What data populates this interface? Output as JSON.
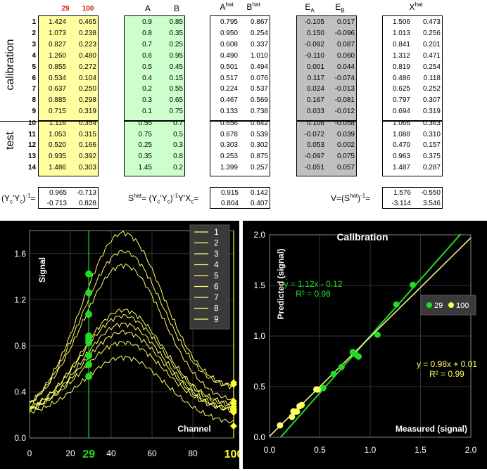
{
  "labels": {
    "calibration": "calibration",
    "test": "test"
  },
  "headers": {
    "y29": "29",
    "y100": "100",
    "a": "A",
    "b": "B",
    "ahat": "A",
    "bhat": "B",
    "hat": "hat",
    "ea": "E",
    "ea_sub": "A",
    "eb": "E",
    "eb_sub": "B",
    "xhat": "X"
  },
  "rows": [
    {
      "i": "1",
      "y29": "1.424",
      "y100": "0.465",
      "a": "0.9",
      "b": "0.85",
      "ah": "0.795",
      "bh": "0.867",
      "ea": "-0.105",
      "eb": "0.017",
      "x1": "1.506",
      "x2": "0.473"
    },
    {
      "i": "2",
      "y29": "1.073",
      "y100": "0.238",
      "a": "0.8",
      "b": "0.35",
      "ah": "0.950",
      "bh": "0.254",
      "ea": "0.150",
      "eb": "-0.096",
      "x1": "1.013",
      "x2": "0.256"
    },
    {
      "i": "3",
      "y29": "0.827",
      "y100": "0.223",
      "a": "0.7",
      "b": "0.25",
      "ah": "0.608",
      "bh": "0.337",
      "ea": "-0.092",
      "eb": "0.087",
      "x1": "0.841",
      "x2": "0.201"
    },
    {
      "i": "4",
      "y29": "1.260",
      "y100": "0.480",
      "a": "0.6",
      "b": "0.95",
      "ah": "0.490",
      "bh": "1.010",
      "ea": "-0.110",
      "eb": "0.060",
      "x1": "1.312",
      "x2": "0.471"
    },
    {
      "i": "5",
      "y29": "0.855",
      "y100": "0.272",
      "a": "0.5",
      "b": "0.45",
      "ah": "0.501",
      "bh": "0.494",
      "ea": "0.001",
      "eb": "0.044",
      "x1": "0.819",
      "x2": "0.254"
    },
    {
      "i": "6",
      "y29": "0.534",
      "y100": "0.104",
      "a": "0.4",
      "b": "0.15",
      "ah": "0.517",
      "bh": "0.076",
      "ea": "0.117",
      "eb": "-0.074",
      "x1": "0.486",
      "x2": "0.118"
    },
    {
      "i": "7",
      "y29": "0.637",
      "y100": "0.250",
      "a": "0.2",
      "b": "0.55",
      "ah": "0.224",
      "bh": "0.537",
      "ea": "0.024",
      "eb": "-0.013",
      "x1": "0.625",
      "x2": "0.252"
    },
    {
      "i": "8",
      "y29": "0.885",
      "y100": "0.298",
      "a": "0.3",
      "b": "0.65",
      "ah": "0.467",
      "bh": "0.569",
      "ea": "0.167",
      "eb": "-0.081",
      "x1": "0.797",
      "x2": "0.307"
    },
    {
      "i": "9",
      "y29": "0.715",
      "y100": "0.319",
      "a": "0.1",
      "b": "0.75",
      "ah": "0.133",
      "bh": "0.738",
      "ea": "0.033",
      "eb": "-0.012",
      "x1": "0.694",
      "x2": "0.319"
    },
    {
      "i": "10",
      "y29": "1.116",
      "y100": "0.354",
      "a": "0.55",
      "b": "0.7",
      "ah": "0.656",
      "bh": "0.642",
      "ea": "0.106",
      "eb": "-0.058",
      "x1": "1.066",
      "x2": "0.363"
    },
    {
      "i": "11",
      "y29": "1.053",
      "y100": "0.315",
      "a": "0.75",
      "b": "0.5",
      "ah": "0.678",
      "bh": "0.539",
      "ea": "-0.072",
      "eb": "0.039",
      "x1": "1.088",
      "x2": "0.310"
    },
    {
      "i": "12",
      "y29": "0.520",
      "y100": "0.166",
      "a": "0.25",
      "b": "0.3",
      "ah": "0.303",
      "bh": "0.302",
      "ea": "0.053",
      "eb": "0.002",
      "x1": "0.470",
      "x2": "0.157"
    },
    {
      "i": "13",
      "y29": "0.935",
      "y100": "0.392",
      "a": "0.35",
      "b": "0.8",
      "ah": "0.253",
      "bh": "0.875",
      "ea": "-0.097",
      "eb": "0.075",
      "x1": "0.963",
      "x2": "0.375"
    },
    {
      "i": "14",
      "y29": "1.486",
      "y100": "0.303",
      "a": "1.45",
      "b": "0.2",
      "ah": "1.399",
      "bh": "0.257",
      "ea": "-0.051",
      "eb": "0.057",
      "x1": "1.487",
      "x2": "0.287"
    }
  ],
  "matrices": {
    "ycinv_label": "(Y",
    "ycinv": [
      [
        "0.965",
        "-0.713"
      ],
      [
        "-0.713",
        "0.828"
      ]
    ],
    "shat": [
      [
        "0.915",
        "0.142"
      ],
      [
        "0.804",
        "0.407"
      ]
    ],
    "v": [
      [
        "1.576",
        "-0.550"
      ],
      [
        "-3.114",
        "3.546"
      ]
    ]
  },
  "formulas": {
    "ycinv": "(YcᵀYc)⁻¹=",
    "shat": "Shat= (YcᵀYc)⁻¹YᵀXc=",
    "v": "V=(Shat)⁻¹="
  },
  "chart_data": [
    {
      "type": "line",
      "title": "",
      "xlabel": "Channel",
      "ylabel": "Signal",
      "xlim": [
        0,
        100
      ],
      "ylim": [
        0,
        1.8
      ],
      "x_ticks": [
        "0",
        "20",
        "29",
        "40",
        "60",
        "80",
        "100"
      ],
      "y_ticks": [
        "0.0",
        "0.4",
        "0.8",
        "1.2",
        "1.6"
      ],
      "markers": {
        "x29": "29",
        "x100": "100"
      },
      "legend": [
        "1",
        "2",
        "3",
        "4",
        "5",
        "6",
        "7",
        "8",
        "9"
      ],
      "legend_position": "top-right",
      "series_peaks": [
        1.78,
        1.62,
        1.5,
        1.11,
        1.06,
        0.99,
        0.92,
        0.83,
        0.7
      ],
      "values_at_29": [
        1.424,
        1.26,
        1.073,
        0.885,
        0.855,
        0.827,
        0.715,
        0.637,
        0.534
      ],
      "values_at_100": [
        0.48,
        0.465,
        0.319,
        0.298,
        0.272,
        0.25,
        0.238,
        0.223,
        0.104
      ]
    },
    {
      "type": "scatter",
      "title": "Calibration",
      "xlabel": "Measured (signal)",
      "ylabel": "Predicted (signal)",
      "xlim": [
        0,
        2.0
      ],
      "ylim": [
        0,
        2.0
      ],
      "x_ticks": [
        "0.0",
        "0.5",
        "1.0",
        "1.5",
        "2.0"
      ],
      "y_ticks": [
        "0.0",
        "0.5",
        "1.0",
        "1.5",
        "2.0"
      ],
      "series": [
        {
          "name": "29",
          "color": "#22dd22",
          "x": [
            1.424,
            1.26,
            1.073,
            0.885,
            0.855,
            0.827,
            0.715,
            0.637,
            0.534
          ],
          "y": [
            1.506,
            1.312,
            1.013,
            0.797,
            0.819,
            0.841,
            0.694,
            0.625,
            0.486
          ],
          "fit": "y = 1.12x - 0.12",
          "r2": "R² = 0.98"
        },
        {
          "name": "100",
          "color": "#ffff66",
          "x": [
            0.48,
            0.465,
            0.319,
            0.298,
            0.272,
            0.25,
            0.238,
            0.223,
            0.104
          ],
          "y": [
            0.471,
            0.473,
            0.319,
            0.307,
            0.254,
            0.252,
            0.256,
            0.201,
            0.118
          ],
          "fit": "y = 0.98x + 0.01",
          "r2": "R² = 0.99"
        }
      ]
    }
  ]
}
